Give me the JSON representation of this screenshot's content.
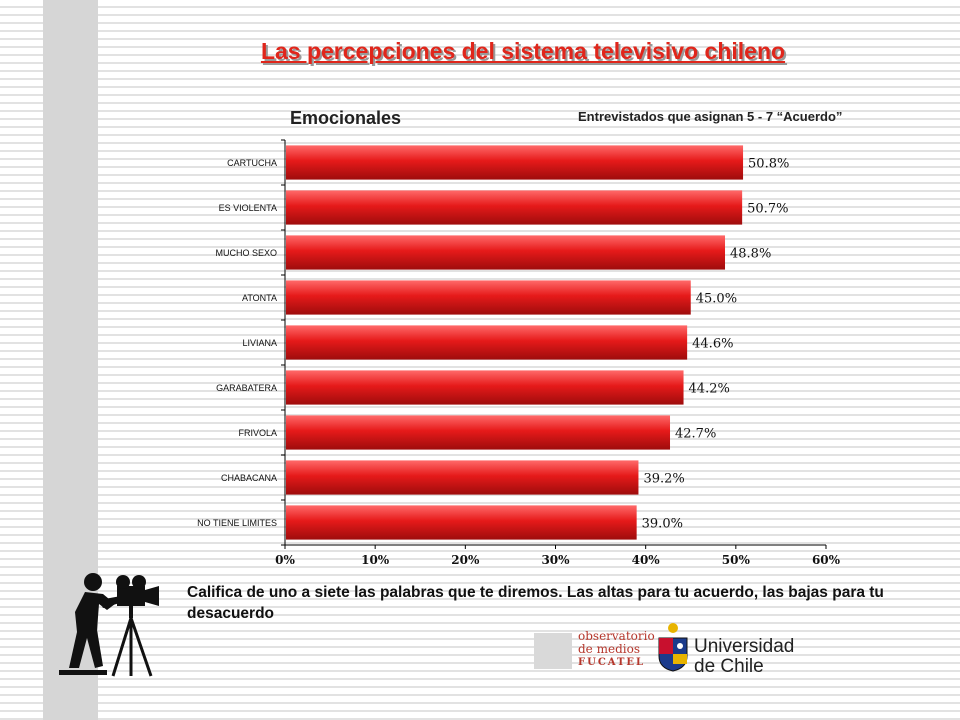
{
  "slide": {
    "title": "Las percepciones del sistema televisivo chileno",
    "subtitle": "Emocionales",
    "note": "Entrevistados que asignan  5 - 7 “Acuerdo”",
    "caption": "Califica de uno a siete las palabras que te diremos. Las altas para tu acuerdo, las bajas para tu desacuerdo"
  },
  "chart_data": {
    "type": "bar",
    "orientation": "horizontal",
    "categories": [
      "CARTUCHA",
      "ES VIOLENTA",
      "MUCHO SEXO",
      "ATONTA",
      "LIVIANA",
      "GARABATERA",
      "FRIVOLA",
      "CHABACANA",
      "NO TIENE LIMITES"
    ],
    "values": [
      50.8,
      50.7,
      48.8,
      45.0,
      44.6,
      44.2,
      42.7,
      39.2,
      39.0
    ],
    "data_labels": [
      "50.8%",
      "50.7%",
      "48.8%",
      "45.0%",
      "44.6%",
      "44.2%",
      "42.7%",
      "39.2%",
      "39.0%"
    ],
    "xlim": [
      0,
      60
    ],
    "x_ticks": [
      "0%",
      "10%",
      "20%",
      "30%",
      "40%",
      "50%",
      "60%"
    ],
    "grid": false,
    "bar_color": "#e61a1a"
  },
  "logos": {
    "observatorio": [
      "observatorio",
      "de medios"
    ],
    "observatorio_brand": "FUCATEL",
    "university": [
      "Universidad",
      "de Chile"
    ]
  }
}
